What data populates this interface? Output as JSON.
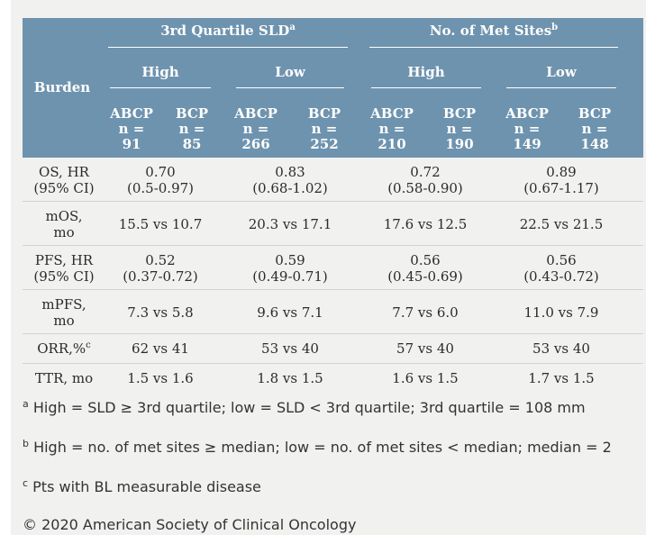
{
  "header": {
    "burden": "Burden",
    "group_sld": "3rd Quartile SLD",
    "group_sld_sup": "a",
    "group_met": "No. of Met Sites",
    "group_met_sup": "b",
    "sub": [
      "High",
      "Low",
      "High",
      "Low"
    ],
    "arms": [
      {
        "name": "ABCP",
        "n_label": "n =",
        "n": "91"
      },
      {
        "name": "BCP",
        "n_label": "n =",
        "n": "85"
      },
      {
        "name": "ABCP",
        "n_label": "n =",
        "n": "266"
      },
      {
        "name": "BCP",
        "n_label": "n =",
        "n": "252"
      },
      {
        "name": "ABCP",
        "n_label": "n =",
        "n": "210"
      },
      {
        "name": "BCP",
        "n_label": "n =",
        "n": "190"
      },
      {
        "name": "ABCP",
        "n_label": "n =",
        "n": "149"
      },
      {
        "name": "BCP",
        "n_label": "n =",
        "n": "148"
      }
    ]
  },
  "rows": [
    {
      "label1": "OS, HR",
      "label2": "(95% CI)",
      "sup": "",
      "cells": [
        [
          "0.70",
          "(0.5-0.97)"
        ],
        [
          "0.83",
          "(0.68-1.02)"
        ],
        [
          "0.72",
          "(0.58-0.90)"
        ],
        [
          "0.89",
          "(0.67-1.17)"
        ]
      ]
    },
    {
      "label1": "mOS,",
      "label2": "mo",
      "sup": "",
      "cells": [
        [
          "15.5 vs 10.7"
        ],
        [
          "20.3 vs 17.1"
        ],
        [
          "17.6 vs 12.5"
        ],
        [
          "22.5 vs 21.5"
        ]
      ]
    },
    {
      "label1": "PFS, HR",
      "label2": "(95% CI)",
      "sup": "",
      "cells": [
        [
          "0.52",
          "(0.37-0.72)"
        ],
        [
          "0.59",
          "(0.49-0.71)"
        ],
        [
          "0.56",
          "(0.45-0.69)"
        ],
        [
          "0.56",
          "(0.43-0.72)"
        ]
      ]
    },
    {
      "label1": "mPFS,",
      "label2": "mo",
      "sup": "",
      "cells": [
        [
          "7.3 vs 5.8"
        ],
        [
          "9.6 vs 7.1"
        ],
        [
          "7.7 vs 6.0"
        ],
        [
          "11.0 vs 7.9"
        ]
      ]
    },
    {
      "label1": "ORR,%",
      "label2": "",
      "sup": "c",
      "cells": [
        [
          "62 vs 41"
        ],
        [
          "53 vs 40"
        ],
        [
          "57 vs 40"
        ],
        [
          "53 vs 40"
        ]
      ]
    },
    {
      "label1": "TTR, mo",
      "label2": "",
      "sup": "",
      "cells": [
        [
          "1.5 vs 1.6"
        ],
        [
          "1.8 vs 1.5"
        ],
        [
          "1.6 vs 1.5"
        ],
        [
          "1.7 vs 1.5"
        ]
      ]
    }
  ],
  "footnotes": [
    {
      "mark": "a",
      "text": "High = SLD ≥ 3rd quartile; low = SLD < 3rd quartile; 3rd quartile = 108 mm"
    },
    {
      "mark": "b",
      "text": "High = no. of met sites ≥ median; low = no. of met sites < median; median = 2"
    },
    {
      "mark": "c",
      "text": "Pts with BL measurable disease"
    }
  ],
  "copyright": "© 2020 American Society of Clinical Oncology",
  "colors": {
    "header_bg": "#6e93ae",
    "panel_bg": "#f1f1f0"
  }
}
